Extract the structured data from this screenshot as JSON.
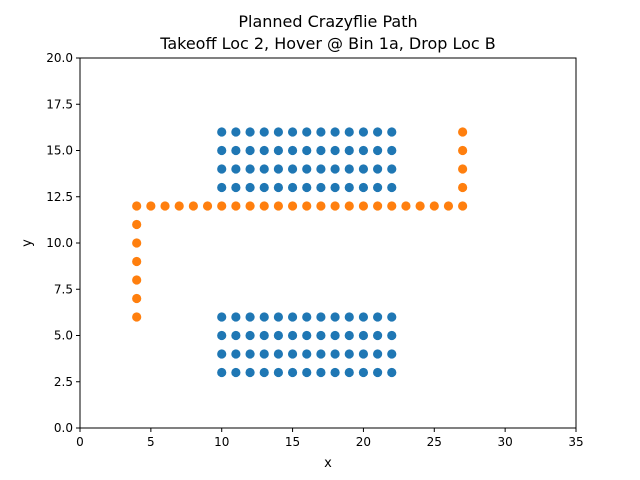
{
  "chart_data": {
    "type": "scatter",
    "title": [
      "Planned Crazyflie Path",
      "Takeoff Loc 2, Hover @ Bin 1a, Drop Loc B"
    ],
    "xlabel": "x",
    "ylabel": "y",
    "xlim": [
      0,
      35
    ],
    "ylim": [
      0,
      20
    ],
    "xticks": [
      0,
      5,
      10,
      15,
      20,
      25,
      30,
      35
    ],
    "yticks": [
      0.0,
      2.5,
      5.0,
      7.5,
      10.0,
      12.5,
      15.0,
      17.5,
      20.0
    ],
    "ytick_labels": [
      "0.0",
      "2.5",
      "5.0",
      "7.5",
      "10.0",
      "12.5",
      "15.0",
      "17.5",
      "20.0"
    ],
    "grid": false,
    "legend": "none",
    "series": [
      {
        "color": "#1f77b4",
        "points": [
          [
            10,
            3
          ],
          [
            11,
            3
          ],
          [
            12,
            3
          ],
          [
            13,
            3
          ],
          [
            14,
            3
          ],
          [
            15,
            3
          ],
          [
            16,
            3
          ],
          [
            17,
            3
          ],
          [
            18,
            3
          ],
          [
            19,
            3
          ],
          [
            20,
            3
          ],
          [
            21,
            3
          ],
          [
            22,
            3
          ],
          [
            10,
            4
          ],
          [
            11,
            4
          ],
          [
            12,
            4
          ],
          [
            13,
            4
          ],
          [
            14,
            4
          ],
          [
            15,
            4
          ],
          [
            16,
            4
          ],
          [
            17,
            4
          ],
          [
            18,
            4
          ],
          [
            19,
            4
          ],
          [
            20,
            4
          ],
          [
            21,
            4
          ],
          [
            22,
            4
          ],
          [
            10,
            5
          ],
          [
            11,
            5
          ],
          [
            12,
            5
          ],
          [
            13,
            5
          ],
          [
            14,
            5
          ],
          [
            15,
            5
          ],
          [
            16,
            5
          ],
          [
            17,
            5
          ],
          [
            18,
            5
          ],
          [
            19,
            5
          ],
          [
            20,
            5
          ],
          [
            21,
            5
          ],
          [
            22,
            5
          ],
          [
            10,
            6
          ],
          [
            11,
            6
          ],
          [
            12,
            6
          ],
          [
            13,
            6
          ],
          [
            14,
            6
          ],
          [
            15,
            6
          ],
          [
            16,
            6
          ],
          [
            17,
            6
          ],
          [
            18,
            6
          ],
          [
            19,
            6
          ],
          [
            20,
            6
          ],
          [
            21,
            6
          ],
          [
            22,
            6
          ],
          [
            10,
            13
          ],
          [
            11,
            13
          ],
          [
            12,
            13
          ],
          [
            13,
            13
          ],
          [
            14,
            13
          ],
          [
            15,
            13
          ],
          [
            16,
            13
          ],
          [
            17,
            13
          ],
          [
            18,
            13
          ],
          [
            19,
            13
          ],
          [
            20,
            13
          ],
          [
            21,
            13
          ],
          [
            22,
            13
          ],
          [
            10,
            14
          ],
          [
            11,
            14
          ],
          [
            12,
            14
          ],
          [
            13,
            14
          ],
          [
            14,
            14
          ],
          [
            15,
            14
          ],
          [
            16,
            14
          ],
          [
            17,
            14
          ],
          [
            18,
            14
          ],
          [
            19,
            14
          ],
          [
            20,
            14
          ],
          [
            21,
            14
          ],
          [
            22,
            14
          ],
          [
            10,
            15
          ],
          [
            11,
            15
          ],
          [
            12,
            15
          ],
          [
            13,
            15
          ],
          [
            14,
            15
          ],
          [
            15,
            15
          ],
          [
            16,
            15
          ],
          [
            17,
            15
          ],
          [
            18,
            15
          ],
          [
            19,
            15
          ],
          [
            20,
            15
          ],
          [
            21,
            15
          ],
          [
            22,
            15
          ],
          [
            10,
            16
          ],
          [
            11,
            16
          ],
          [
            12,
            16
          ],
          [
            13,
            16
          ],
          [
            14,
            16
          ],
          [
            15,
            16
          ],
          [
            16,
            16
          ],
          [
            17,
            16
          ],
          [
            18,
            16
          ],
          [
            19,
            16
          ],
          [
            20,
            16
          ],
          [
            21,
            16
          ],
          [
            22,
            16
          ]
        ]
      },
      {
        "color": "#ff7f0e",
        "points": [
          [
            4,
            6
          ],
          [
            4,
            7
          ],
          [
            4,
            8
          ],
          [
            4,
            9
          ],
          [
            4,
            10
          ],
          [
            4,
            11
          ],
          [
            4,
            12
          ],
          [
            5,
            12
          ],
          [
            6,
            12
          ],
          [
            7,
            12
          ],
          [
            8,
            12
          ],
          [
            9,
            12
          ],
          [
            10,
            12
          ],
          [
            11,
            12
          ],
          [
            12,
            12
          ],
          [
            13,
            12
          ],
          [
            14,
            12
          ],
          [
            15,
            12
          ],
          [
            16,
            12
          ],
          [
            17,
            12
          ],
          [
            18,
            12
          ],
          [
            19,
            12
          ],
          [
            20,
            12
          ],
          [
            21,
            12
          ],
          [
            22,
            12
          ],
          [
            23,
            12
          ],
          [
            24,
            12
          ],
          [
            25,
            12
          ],
          [
            26,
            12
          ],
          [
            27,
            12
          ],
          [
            27,
            13
          ],
          [
            27,
            14
          ],
          [
            27,
            15
          ],
          [
            27,
            16
          ]
        ]
      }
    ]
  }
}
